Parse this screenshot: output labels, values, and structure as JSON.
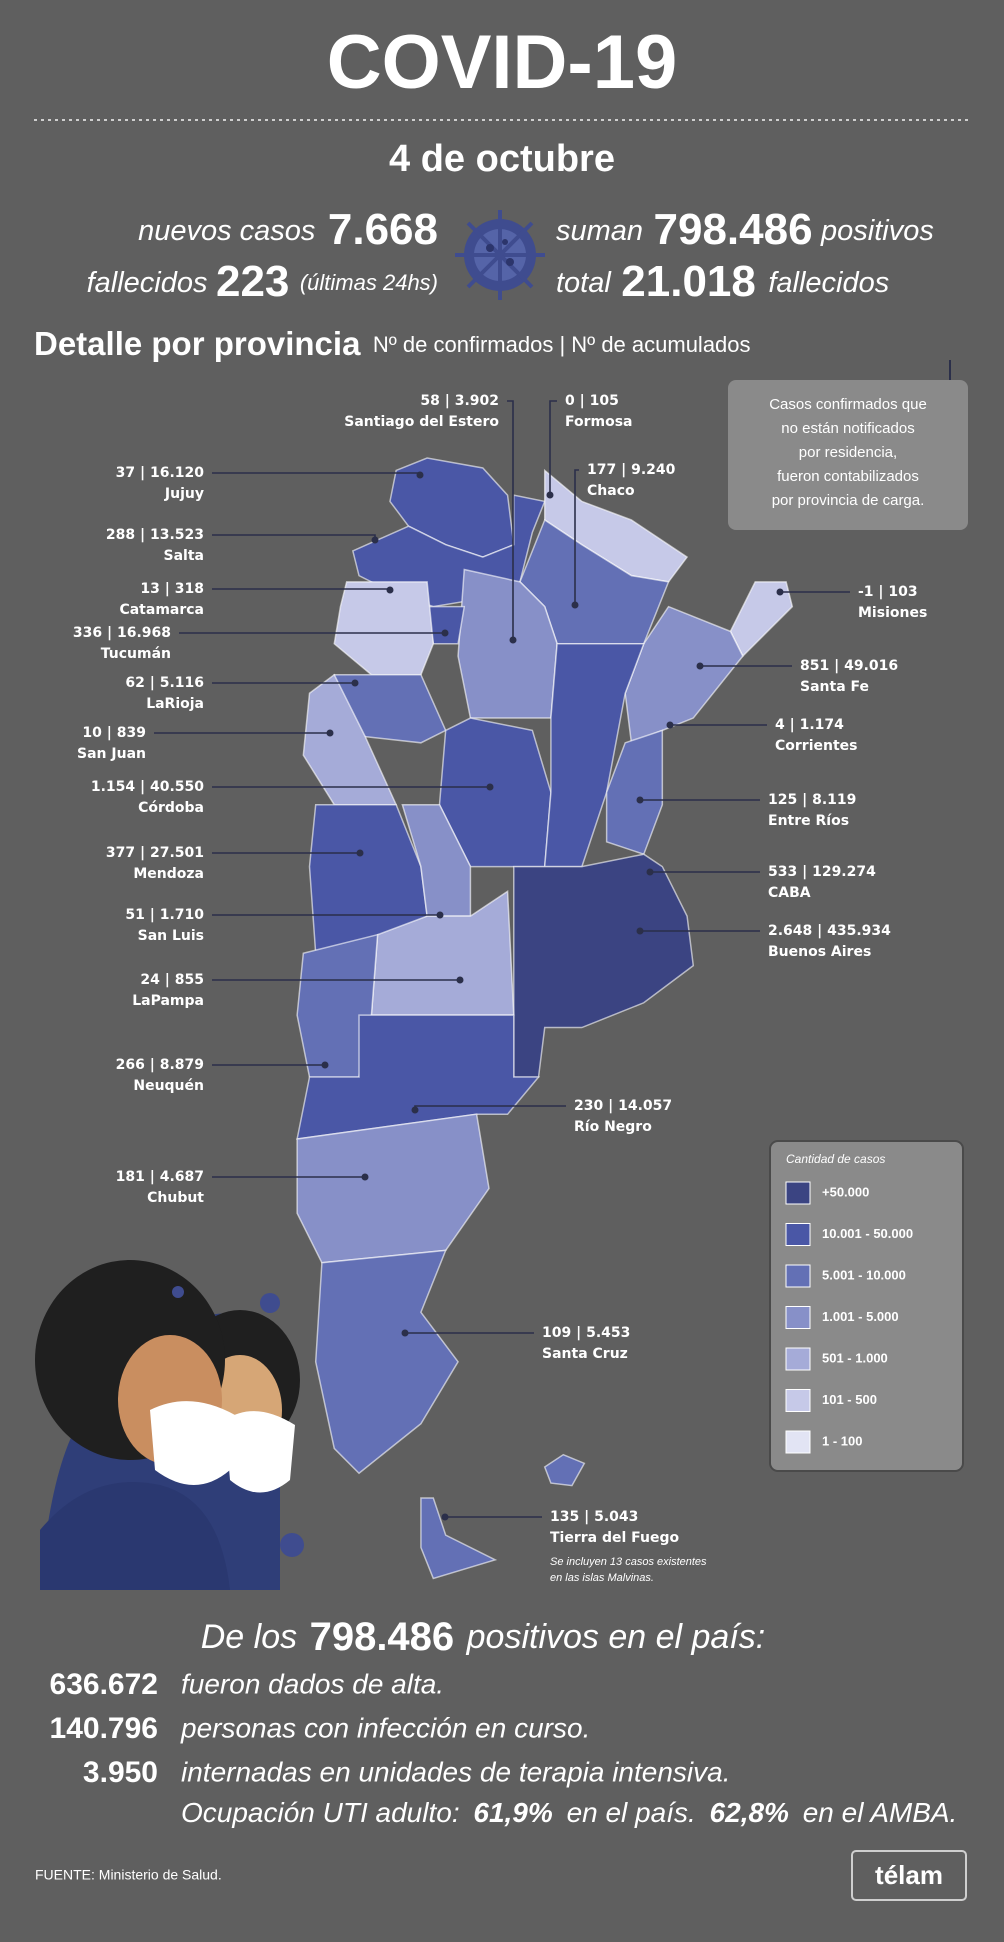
{
  "header": {
    "title": "COVID-19",
    "date": "4 de octubre"
  },
  "summary": {
    "new_cases_label": "nuevos casos",
    "new_cases": "7.668",
    "deaths_label": "fallecidos",
    "deaths": "223",
    "deaths_note": "(últimas 24hs)",
    "total_prefix": "suman",
    "total_cases": "798.486",
    "total_suffix": "positivos",
    "total_deaths_prefix": "total",
    "total_deaths": "21.018",
    "total_deaths_suffix": "fallecidos"
  },
  "detail": {
    "title": "Detalle por provincia",
    "subtitle": "Nº de confirmados | Nº de acumulados",
    "note": [
      "Casos confirmados que",
      "no están notificados",
      "por residencia,",
      "fueron contabilizados",
      "por provincia de carga."
    ]
  },
  "provinces": [
    {
      "figures": "58 | 3.902",
      "name": "Santiago del Estero"
    },
    {
      "figures": "0 | 105",
      "name": "Formosa"
    },
    {
      "figures": "37 | 16.120",
      "name": "Jujuy"
    },
    {
      "figures": "177 | 9.240",
      "name": "Chaco"
    },
    {
      "figures": "288 | 13.523",
      "name": "Salta"
    },
    {
      "figures": "13 | 318",
      "name": "Catamarca"
    },
    {
      "figures": "-1 | 103",
      "name": "Misiones"
    },
    {
      "figures": "336 | 16.968",
      "name": "Tucumán"
    },
    {
      "figures": "851 | 49.016",
      "name": "Santa Fe"
    },
    {
      "figures": "62 | 5.116",
      "name": "LaRioja"
    },
    {
      "figures": "4 | 1.174",
      "name": "Corrientes"
    },
    {
      "figures": "10 | 839",
      "name": "San Juan"
    },
    {
      "figures": "1.154 | 40.550",
      "name": "Córdoba"
    },
    {
      "figures": "125 | 8.119",
      "name": "Entre Ríos"
    },
    {
      "figures": "377 | 27.501",
      "name": "Mendoza"
    },
    {
      "figures": "533 | 129.274",
      "name": "CABA"
    },
    {
      "figures": "51 | 1.710",
      "name": "San Luis"
    },
    {
      "figures": "2.648 | 435.934",
      "name": "Buenos Aires"
    },
    {
      "figures": "24 | 855",
      "name": "LaPampa"
    },
    {
      "figures": "266 | 8.879",
      "name": "Neuquén"
    },
    {
      "figures": "230 | 14.057",
      "name": "Río Negro"
    },
    {
      "figures": "181 | 4.687",
      "name": "Chubut"
    },
    {
      "figures": "109 | 5.453",
      "name": "Santa Cruz"
    },
    {
      "figures": "135 | 5.043",
      "name": "Tierra del Fuego"
    }
  ],
  "tierra_del_fuego_note": [
    "Se incluyen 13 casos existentes",
    "en las islas Malvinas."
  ],
  "legend": {
    "title": "Cantidad de casos",
    "items": [
      "+50.000",
      "10.001 - 50.000",
      "5.001 - 10.000",
      "1.001 - 5.000",
      "501 - 1.000",
      "101 - 500",
      "1 - 100"
    ]
  },
  "recovery": {
    "intro_prefix": "De los",
    "intro_value": "798.486",
    "intro_suffix": "positivos en el país:",
    "rows": [
      {
        "value": "636.672",
        "text": "fueron dados de alta."
      },
      {
        "value": "140.796",
        "text": "personas con infección en curso."
      },
      {
        "value": "3.950",
        "text": "internadas en unidades de terapia intensiva."
      }
    ],
    "icu": "Ocupación UTI adulto:",
    "icu_country": "61,9%",
    "icu_country_suffix": "en el país.",
    "icu_amba": "62,8%",
    "icu_amba_suffix": "en el AMBA."
  },
  "footer": {
    "source": "FUENTE: Ministerio de Salud.",
    "brand": "télam"
  }
}
